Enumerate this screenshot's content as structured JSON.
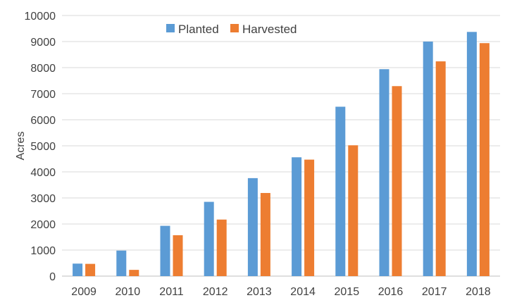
{
  "chart_data": {
    "type": "bar",
    "title": "",
    "xlabel": "",
    "ylabel": "Acres",
    "ylim": [
      0,
      10000
    ],
    "y_ticks": [
      0,
      1000,
      2000,
      3000,
      4000,
      5000,
      6000,
      7000,
      8000,
      9000,
      10000
    ],
    "grid": true,
    "legend_position": "top-left",
    "categories": [
      "2009",
      "2010",
      "2011",
      "2012",
      "2013",
      "2014",
      "2015",
      "2016",
      "2017",
      "2018"
    ],
    "series": [
      {
        "name": "Planted",
        "color": "#5B9BD5",
        "values": [
          480,
          980,
          1930,
          2850,
          3760,
          4560,
          6500,
          7940,
          9000,
          9370
        ]
      },
      {
        "name": "Harvested",
        "color": "#ED7D31",
        "values": [
          470,
          240,
          1570,
          2170,
          3190,
          4470,
          5020,
          7290,
          8240,
          8940
        ]
      }
    ]
  }
}
